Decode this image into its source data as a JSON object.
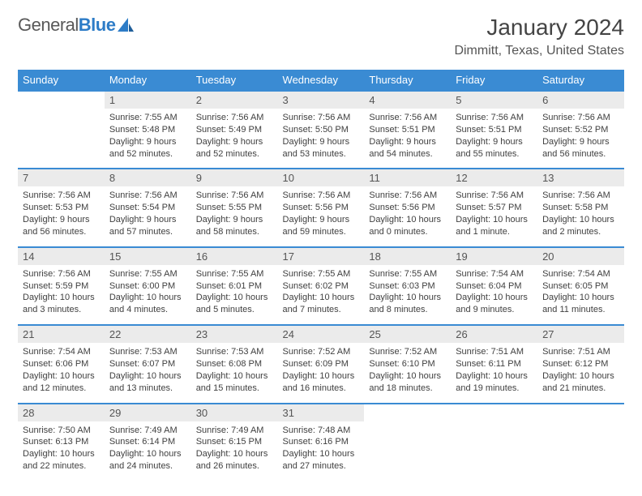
{
  "logo": {
    "text1": "General",
    "text2": "Blue"
  },
  "title": "January 2024",
  "location": "Dimmitt, Texas, United States",
  "header_bg": "#3a8bd3",
  "header_text": "#ffffff",
  "daynum_bg": "#ebebeb",
  "border_color": "#3a8bd3",
  "dow": [
    "Sunday",
    "Monday",
    "Tuesday",
    "Wednesday",
    "Thursday",
    "Friday",
    "Saturday"
  ],
  "weeks": [
    [
      null,
      {
        "n": "1",
        "sr": "Sunrise: 7:55 AM",
        "ss": "Sunset: 5:48 PM",
        "d1": "Daylight: 9 hours",
        "d2": "and 52 minutes."
      },
      {
        "n": "2",
        "sr": "Sunrise: 7:56 AM",
        "ss": "Sunset: 5:49 PM",
        "d1": "Daylight: 9 hours",
        "d2": "and 52 minutes."
      },
      {
        "n": "3",
        "sr": "Sunrise: 7:56 AM",
        "ss": "Sunset: 5:50 PM",
        "d1": "Daylight: 9 hours",
        "d2": "and 53 minutes."
      },
      {
        "n": "4",
        "sr": "Sunrise: 7:56 AM",
        "ss": "Sunset: 5:51 PM",
        "d1": "Daylight: 9 hours",
        "d2": "and 54 minutes."
      },
      {
        "n": "5",
        "sr": "Sunrise: 7:56 AM",
        "ss": "Sunset: 5:51 PM",
        "d1": "Daylight: 9 hours",
        "d2": "and 55 minutes."
      },
      {
        "n": "6",
        "sr": "Sunrise: 7:56 AM",
        "ss": "Sunset: 5:52 PM",
        "d1": "Daylight: 9 hours",
        "d2": "and 56 minutes."
      }
    ],
    [
      {
        "n": "7",
        "sr": "Sunrise: 7:56 AM",
        "ss": "Sunset: 5:53 PM",
        "d1": "Daylight: 9 hours",
        "d2": "and 56 minutes."
      },
      {
        "n": "8",
        "sr": "Sunrise: 7:56 AM",
        "ss": "Sunset: 5:54 PM",
        "d1": "Daylight: 9 hours",
        "d2": "and 57 minutes."
      },
      {
        "n": "9",
        "sr": "Sunrise: 7:56 AM",
        "ss": "Sunset: 5:55 PM",
        "d1": "Daylight: 9 hours",
        "d2": "and 58 minutes."
      },
      {
        "n": "10",
        "sr": "Sunrise: 7:56 AM",
        "ss": "Sunset: 5:56 PM",
        "d1": "Daylight: 9 hours",
        "d2": "and 59 minutes."
      },
      {
        "n": "11",
        "sr": "Sunrise: 7:56 AM",
        "ss": "Sunset: 5:56 PM",
        "d1": "Daylight: 10 hours",
        "d2": "and 0 minutes."
      },
      {
        "n": "12",
        "sr": "Sunrise: 7:56 AM",
        "ss": "Sunset: 5:57 PM",
        "d1": "Daylight: 10 hours",
        "d2": "and 1 minute."
      },
      {
        "n": "13",
        "sr": "Sunrise: 7:56 AM",
        "ss": "Sunset: 5:58 PM",
        "d1": "Daylight: 10 hours",
        "d2": "and 2 minutes."
      }
    ],
    [
      {
        "n": "14",
        "sr": "Sunrise: 7:56 AM",
        "ss": "Sunset: 5:59 PM",
        "d1": "Daylight: 10 hours",
        "d2": "and 3 minutes."
      },
      {
        "n": "15",
        "sr": "Sunrise: 7:55 AM",
        "ss": "Sunset: 6:00 PM",
        "d1": "Daylight: 10 hours",
        "d2": "and 4 minutes."
      },
      {
        "n": "16",
        "sr": "Sunrise: 7:55 AM",
        "ss": "Sunset: 6:01 PM",
        "d1": "Daylight: 10 hours",
        "d2": "and 5 minutes."
      },
      {
        "n": "17",
        "sr": "Sunrise: 7:55 AM",
        "ss": "Sunset: 6:02 PM",
        "d1": "Daylight: 10 hours",
        "d2": "and 7 minutes."
      },
      {
        "n": "18",
        "sr": "Sunrise: 7:55 AM",
        "ss": "Sunset: 6:03 PM",
        "d1": "Daylight: 10 hours",
        "d2": "and 8 minutes."
      },
      {
        "n": "19",
        "sr": "Sunrise: 7:54 AM",
        "ss": "Sunset: 6:04 PM",
        "d1": "Daylight: 10 hours",
        "d2": "and 9 minutes."
      },
      {
        "n": "20",
        "sr": "Sunrise: 7:54 AM",
        "ss": "Sunset: 6:05 PM",
        "d1": "Daylight: 10 hours",
        "d2": "and 11 minutes."
      }
    ],
    [
      {
        "n": "21",
        "sr": "Sunrise: 7:54 AM",
        "ss": "Sunset: 6:06 PM",
        "d1": "Daylight: 10 hours",
        "d2": "and 12 minutes."
      },
      {
        "n": "22",
        "sr": "Sunrise: 7:53 AM",
        "ss": "Sunset: 6:07 PM",
        "d1": "Daylight: 10 hours",
        "d2": "and 13 minutes."
      },
      {
        "n": "23",
        "sr": "Sunrise: 7:53 AM",
        "ss": "Sunset: 6:08 PM",
        "d1": "Daylight: 10 hours",
        "d2": "and 15 minutes."
      },
      {
        "n": "24",
        "sr": "Sunrise: 7:52 AM",
        "ss": "Sunset: 6:09 PM",
        "d1": "Daylight: 10 hours",
        "d2": "and 16 minutes."
      },
      {
        "n": "25",
        "sr": "Sunrise: 7:52 AM",
        "ss": "Sunset: 6:10 PM",
        "d1": "Daylight: 10 hours",
        "d2": "and 18 minutes."
      },
      {
        "n": "26",
        "sr": "Sunrise: 7:51 AM",
        "ss": "Sunset: 6:11 PM",
        "d1": "Daylight: 10 hours",
        "d2": "and 19 minutes."
      },
      {
        "n": "27",
        "sr": "Sunrise: 7:51 AM",
        "ss": "Sunset: 6:12 PM",
        "d1": "Daylight: 10 hours",
        "d2": "and 21 minutes."
      }
    ],
    [
      {
        "n": "28",
        "sr": "Sunrise: 7:50 AM",
        "ss": "Sunset: 6:13 PM",
        "d1": "Daylight: 10 hours",
        "d2": "and 22 minutes."
      },
      {
        "n": "29",
        "sr": "Sunrise: 7:49 AM",
        "ss": "Sunset: 6:14 PM",
        "d1": "Daylight: 10 hours",
        "d2": "and 24 minutes."
      },
      {
        "n": "30",
        "sr": "Sunrise: 7:49 AM",
        "ss": "Sunset: 6:15 PM",
        "d1": "Daylight: 10 hours",
        "d2": "and 26 minutes."
      },
      {
        "n": "31",
        "sr": "Sunrise: 7:48 AM",
        "ss": "Sunset: 6:16 PM",
        "d1": "Daylight: 10 hours",
        "d2": "and 27 minutes."
      },
      null,
      null,
      null
    ]
  ]
}
